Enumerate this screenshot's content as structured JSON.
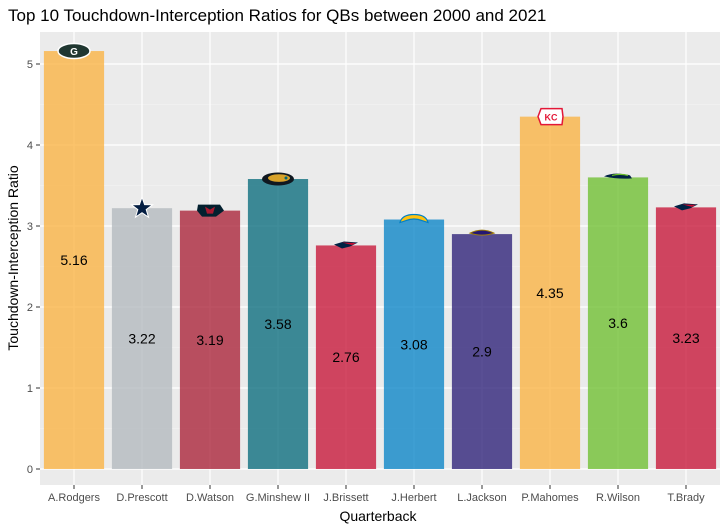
{
  "chart_data": {
    "type": "bar",
    "title": "Top 10 Touchdown-Interception Ratios for QBs between 2000 and 2021",
    "xlabel": "Quarterback",
    "ylabel": "Touchdown-Interception Ratio",
    "ylim": [
      0,
      5.5
    ],
    "yticks": [
      0,
      1,
      2,
      3,
      4,
      5
    ],
    "grid": true,
    "legend": "none",
    "categories": [
      "A.Rodgers",
      "D.Prescott",
      "D.Watson",
      "G.Minshew II",
      "J.Brissett",
      "J.Herbert",
      "L.Jackson",
      "P.Mahomes",
      "R.Wilson",
      "T.Brady"
    ],
    "values": [
      5.16,
      3.22,
      3.19,
      3.58,
      2.76,
      3.08,
      2.9,
      4.35,
      3.6,
      3.23
    ],
    "labels": [
      "5.16",
      "3.22",
      "3.19",
      "3.58",
      "2.76",
      "3.08",
      "2.9",
      "4.35",
      "3.6",
      "3.23"
    ],
    "colors": [
      "#fbb03b",
      "#b0b7bc",
      "#a71930",
      "#006778",
      "#c60c30",
      "#0080c6",
      "#241773",
      "#fbb03b",
      "#69be28",
      "#c60c30"
    ],
    "team_logos": [
      "packers-logo",
      "cowboys-logo",
      "texans-logo",
      "jaguars-logo",
      "patriots-logo",
      "chargers-logo",
      "ravens-logo",
      "chiefs-logo",
      "seahawks-logo",
      "patriots-logo"
    ]
  }
}
